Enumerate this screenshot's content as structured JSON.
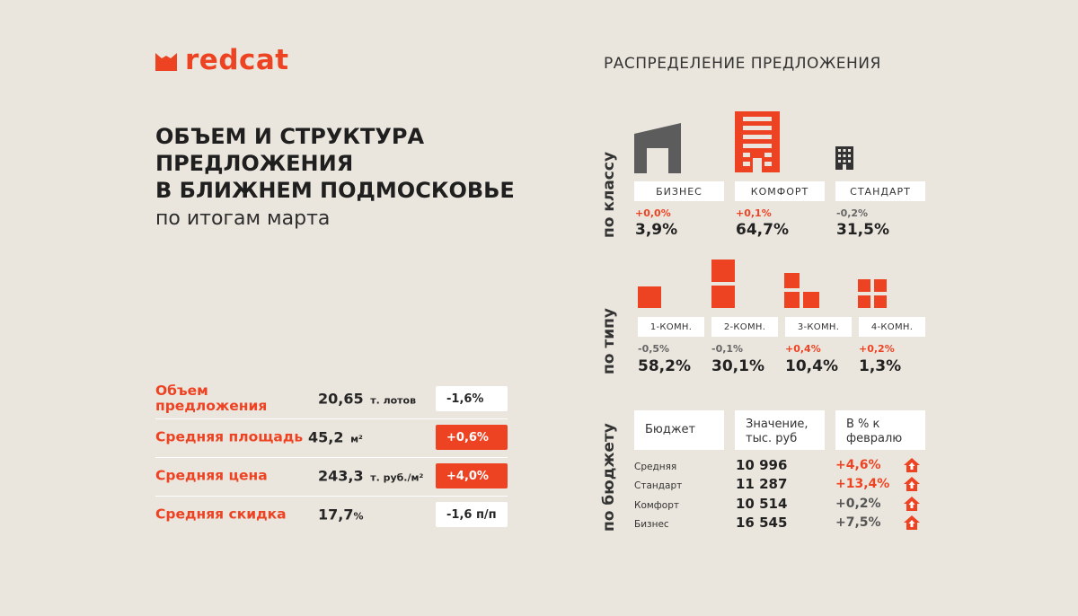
{
  "brand": {
    "name": "redcat",
    "accent": "#ee4323"
  },
  "title": {
    "lines": [
      "ОБЪЕМ И СТРУКТУРА",
      "ПРЕДЛОЖЕНИЯ",
      "В БЛИЖНЕМ ПОДМОСКОВЬЕ"
    ],
    "subtitle": "по итогам марта"
  },
  "metrics": [
    {
      "label": "Объем предложения",
      "value": "20,65",
      "unit": "т. лотов",
      "change": "-1,6%"
    },
    {
      "label": "Средняя площадь",
      "value": "45,2",
      "unit": "м²",
      "change": "+0,6%"
    },
    {
      "label": "Средняя цена",
      "value": "243,3",
      "unit": "т. руб./м²",
      "change": "+4,0%"
    },
    {
      "label": "Средняя скидка",
      "value": "17,7",
      "unit": "%",
      "change": "-1,6 п/п"
    }
  ],
  "distribution": {
    "title": "РАСПРЕДЕЛЕНИЕ ПРЕДЛОЖЕНИЯ",
    "by_class": {
      "label": "по классу",
      "items": [
        {
          "name": "БИЗНЕС",
          "change": "+0,0%",
          "share": "3,9%"
        },
        {
          "name": "КОМФОРТ",
          "change": "+0,1%",
          "share": "64,7%"
        },
        {
          "name": "СТАНДАРТ",
          "change": "-0,2%",
          "share": "31,5%"
        }
      ]
    },
    "by_type": {
      "label": "по типу",
      "items": [
        {
          "name": "1-КОМН.",
          "change": "-0,5%",
          "share": "58,2%"
        },
        {
          "name": "2-КОМН.",
          "change": "-0,1%",
          "share": "30,1%"
        },
        {
          "name": "3-КОМН.",
          "change": "+0,4%",
          "share": "10,4%"
        },
        {
          "name": "4-КОМН.",
          "change": "+0,2%",
          "share": "1,3%"
        }
      ]
    },
    "by_budget": {
      "label": "по бюджету",
      "headers": [
        "Бюджет",
        "Значение, тыс. руб",
        "В % к февралю"
      ],
      "rows": [
        {
          "name": "Средняя",
          "value": "10 996",
          "change": "+4,6%"
        },
        {
          "name": "Стандарт",
          "value": "11 287",
          "change": "+13,4%"
        },
        {
          "name": "Комфорт",
          "value": "10 514",
          "change": "+0,2%"
        },
        {
          "name": "Бизнес",
          "value": "16 545",
          "change": "+7,5%"
        }
      ]
    }
  }
}
